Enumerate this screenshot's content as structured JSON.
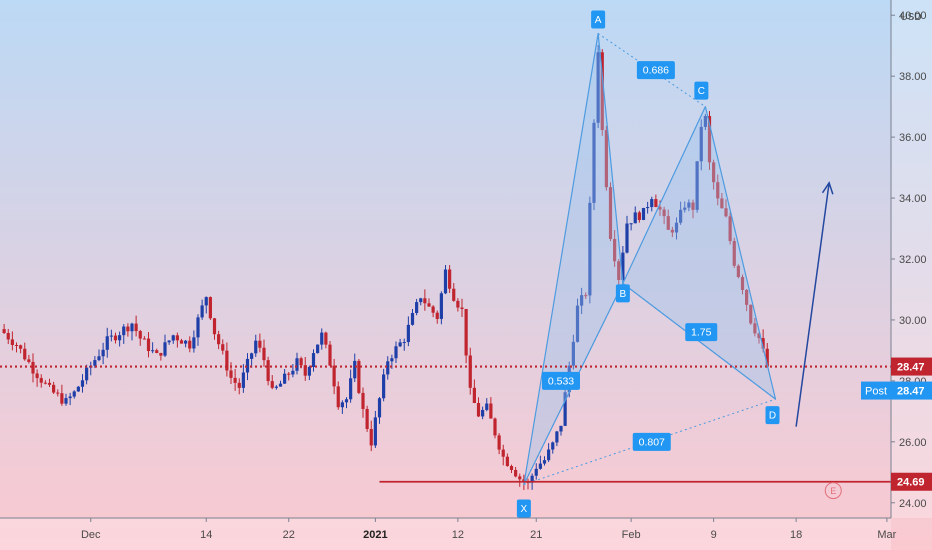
{
  "colors": {
    "bg_top": "#bcd9f5",
    "bg_bottom": "#fbc9d0",
    "up": "#1f3fa8",
    "down": "#c0242e",
    "pattern_stroke": "#4d9be0",
    "pattern_fill": "#9cc4ee",
    "label_bg": "#2196f3",
    "level_red": "#c0242e",
    "arrow": "#2447a0"
  },
  "chart_data": {
    "type": "candlestick",
    "currency": "USD",
    "ylim": [
      23.5,
      40.5
    ],
    "yticks": [
      "24.00",
      "26.00",
      "28.00",
      "30.00",
      "32.00",
      "34.00",
      "36.00",
      "38.00",
      "40.00"
    ],
    "xlim": [
      0,
      108
    ],
    "xticks": [
      {
        "label": "Dec",
        "x": 11,
        "bold": false
      },
      {
        "label": "14",
        "x": 25,
        "bold": false
      },
      {
        "label": "22",
        "x": 35,
        "bold": false
      },
      {
        "label": "2021",
        "x": 45.5,
        "bold": true
      },
      {
        "label": "12",
        "x": 55.5,
        "bold": false
      },
      {
        "label": "21",
        "x": 65,
        "bold": false
      },
      {
        "label": "Feb",
        "x": 76.5,
        "bold": false
      },
      {
        "label": "9",
        "x": 86.5,
        "bold": false
      },
      {
        "label": "18",
        "x": 96.5,
        "bold": false
      },
      {
        "label": "Mar",
        "x": 107.5,
        "bold": false
      }
    ],
    "price_anchors": [
      [
        0,
        29.7
      ],
      [
        2,
        29.2
      ],
      [
        4,
        28.4
      ],
      [
        6,
        27.7
      ],
      [
        8,
        27.3
      ],
      [
        9,
        27.6
      ],
      [
        11,
        28.5
      ],
      [
        13,
        29.3
      ],
      [
        15,
        29.7
      ],
      [
        16,
        29.9
      ],
      [
        17,
        29.4
      ],
      [
        19,
        28.8
      ],
      [
        21,
        29.5
      ],
      [
        23,
        29.2
      ],
      [
        25,
        30.8
      ],
      [
        26,
        29.6
      ],
      [
        28,
        28.1
      ],
      [
        29,
        27.8
      ],
      [
        31,
        29.3
      ],
      [
        32,
        28.7
      ],
      [
        33,
        27.6
      ],
      [
        34,
        27.9
      ],
      [
        36,
        28.6
      ],
      [
        37,
        28.2
      ],
      [
        38,
        29.0
      ],
      [
        39,
        29.5
      ],
      [
        40,
        28.6
      ],
      [
        41,
        27.3
      ],
      [
        42,
        27.4
      ],
      [
        43,
        28.5
      ],
      [
        44,
        27.0
      ],
      [
        45,
        26.0
      ],
      [
        46,
        27.4
      ],
      [
        47,
        28.7
      ],
      [
        49,
        29.4
      ],
      [
        50,
        30.1
      ],
      [
        51,
        30.8
      ],
      [
        52,
        30.4
      ],
      [
        53,
        30.1
      ],
      [
        54,
        31.6
      ],
      [
        55,
        30.8
      ],
      [
        56,
        30.3
      ],
      [
        57,
        27.6
      ],
      [
        58,
        26.9
      ],
      [
        59,
        27.1
      ],
      [
        60,
        26.3
      ],
      [
        61,
        25.5
      ],
      [
        62,
        25.2
      ],
      [
        63,
        24.8
      ],
      [
        64,
        24.6
      ],
      [
        65,
        25.2
      ],
      [
        66,
        25.4
      ],
      [
        67,
        25.9
      ],
      [
        68,
        26.6
      ],
      [
        69,
        28.5
      ],
      [
        70,
        30.4
      ],
      [
        71,
        30.9
      ],
      [
        72,
        36.5
      ],
      [
        72.5,
        38.9
      ],
      [
        73,
        36.2
      ],
      [
        74,
        32.8
      ],
      [
        75,
        31.4
      ],
      [
        76,
        33.2
      ],
      [
        77,
        33.4
      ],
      [
        78,
        33.5
      ],
      [
        79,
        34.1
      ],
      [
        80,
        33.6
      ],
      [
        81,
        32.9
      ],
      [
        82,
        33.1
      ],
      [
        83,
        33.8
      ],
      [
        84,
        33.7
      ],
      [
        85,
        36.4
      ],
      [
        85.5,
        36.6
      ],
      [
        86,
        35.1
      ],
      [
        87,
        33.9
      ],
      [
        88,
        33.3
      ],
      [
        89,
        31.9
      ],
      [
        90,
        31.1
      ],
      [
        91,
        30.0
      ],
      [
        92,
        29.4
      ],
      [
        93,
        28.47
      ]
    ],
    "harmonic_points": [
      {
        "label": "X",
        "x": 63.5,
        "y": 24.6
      },
      {
        "label": "A",
        "x": 72.5,
        "y": 39.4
      },
      {
        "label": "B",
        "x": 75.5,
        "y": 31.2
      },
      {
        "label": "C",
        "x": 85.5,
        "y": 37.0
      },
      {
        "label": "D",
        "x": 94,
        "y": 27.4
      }
    ],
    "ratios": [
      {
        "label": "0.533",
        "x": 68,
        "y": 28.0
      },
      {
        "label": "0.686",
        "x": 79.5,
        "y": 38.2
      },
      {
        "label": "1.75",
        "x": 85,
        "y": 29.6
      },
      {
        "label": "0.807",
        "x": 79,
        "y": 26.0
      }
    ],
    "levels": [
      {
        "price": 28.47,
        "label": "28.47",
        "style": "dotted",
        "x_start": 0
      },
      {
        "price": 24.69,
        "label": "24.69",
        "style": "solid",
        "x_start": 46
      }
    ],
    "post_label": "Post",
    "post_price": "28.47",
    "arrow": {
      "x1": 96.5,
      "y1": 26.5,
      "x2": 100.5,
      "y2": 34.5
    },
    "event_marker": "E",
    "event_x": 101,
    "event_y": 24.4
  }
}
